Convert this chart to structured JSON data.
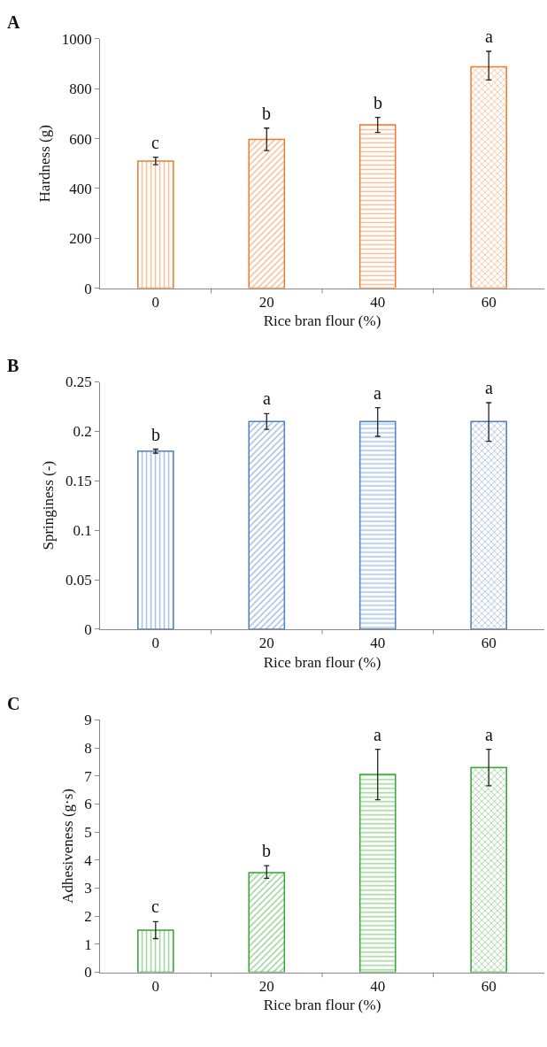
{
  "chart_data": [
    {
      "type": "bar",
      "title": "A",
      "xlabel": "Rice bran flour (%)",
      "ylabel": "Hardness (g)",
      "categories": [
        "0",
        "20",
        "40",
        "60"
      ],
      "color": "#ed7d31",
      "values": [
        510,
        597,
        655,
        888
      ],
      "errors": [
        [
          495,
          525
        ],
        [
          552,
          642
        ],
        [
          625,
          685
        ],
        [
          835,
          950
        ]
      ],
      "ylim": [
        0,
        1000
      ],
      "yticks": [
        0,
        200,
        400,
        600,
        800,
        1000
      ],
      "annotations": [
        {
          "text": "c",
          "x": "0",
          "y": 510
        },
        {
          "text": "b",
          "x": "20",
          "y": 597
        },
        {
          "text": "b",
          "x": "40",
          "y": 655
        },
        {
          "text": "a",
          "x": "60",
          "y": 888
        }
      ]
    },
    {
      "type": "bar",
      "title": "B",
      "xlabel": "Rice bran flour (%)",
      "ylabel": "Springiness (-)",
      "categories": [
        "0",
        "20",
        "40",
        "60"
      ],
      "color": "#4f81bd",
      "values": [
        0.18,
        0.21,
        0.21,
        0.21
      ],
      "errors": [
        [
          0.178,
          0.182
        ],
        [
          0.202,
          0.218
        ],
        [
          0.195,
          0.224
        ],
        [
          0.19,
          0.229
        ]
      ],
      "ylim": [
        0,
        0.25
      ],
      "yticks": [
        0,
        0.05,
        0.1,
        0.15,
        0.2,
        0.25
      ],
      "annotations": [
        {
          "text": "b",
          "x": "0",
          "y": 0.18
        },
        {
          "text": "a",
          "x": "20",
          "y": 0.21
        },
        {
          "text": "a",
          "x": "40",
          "y": 0.21
        },
        {
          "text": "a",
          "x": "60",
          "y": 0.21
        }
      ]
    },
    {
      "type": "bar",
      "title": "C",
      "xlabel": "Rice bran flour (%)",
      "ylabel": "Adhesiveness (g·s)",
      "categories": [
        "0",
        "20",
        "40",
        "60"
      ],
      "color": "#3aa335",
      "values": [
        1.5,
        3.55,
        7.05,
        7.3
      ],
      "errors": [
        [
          1.2,
          1.8
        ],
        [
          3.35,
          3.8
        ],
        [
          6.15,
          7.95
        ],
        [
          6.65,
          7.95
        ]
      ],
      "ylim": [
        0,
        9
      ],
      "yticks": [
        0,
        1,
        2,
        3,
        4,
        5,
        6,
        7,
        8,
        9
      ],
      "annotations": [
        {
          "text": "c",
          "x": "0",
          "y": 1.5
        },
        {
          "text": "b",
          "x": "20",
          "y": 3.55
        },
        {
          "text": "a",
          "x": "40",
          "y": 7.05
        },
        {
          "text": "a",
          "x": "60",
          "y": 7.3
        }
      ]
    }
  ]
}
